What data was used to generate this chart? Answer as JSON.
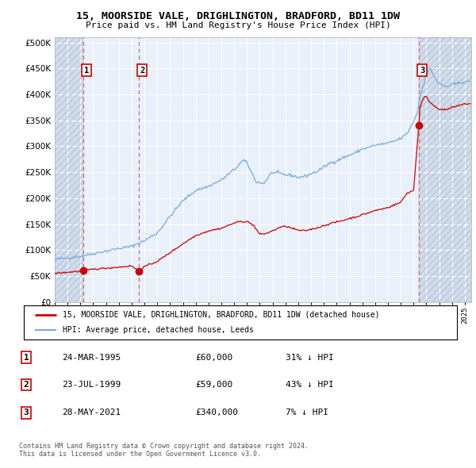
{
  "title": "15, MOORSIDE VALE, DRIGHLINGTON, BRADFORD, BD11 1DW",
  "subtitle": "Price paid vs. HM Land Registry's House Price Index (HPI)",
  "legend_label1": "15, MOORSIDE VALE, DRIGHLINGTON, BRADFORD, BD11 1DW (detached house)",
  "legend_label2": "HPI: Average price, detached house, Leeds",
  "table_entries": [
    {
      "num": "1",
      "date": "24-MAR-1995",
      "price": "£60,000",
      "hpi": "31% ↓ HPI"
    },
    {
      "num": "2",
      "date": "23-JUL-1999",
      "price": "£59,000",
      "hpi": "43% ↓ HPI"
    },
    {
      "num": "3",
      "date": "28-MAY-2021",
      "price": "£340,000",
      "hpi": "7% ↓ HPI"
    }
  ],
  "sale_dates": [
    1995.23,
    1999.56,
    2021.41
  ],
  "sale_prices": [
    60000,
    59000,
    340000
  ],
  "copyright": "Contains HM Land Registry data © Crown copyright and database right 2024.\nThis data is licensed under the Open Government Licence v3.0.",
  "bg_color": "#ffffff",
  "plot_bg": "#e8f0fa",
  "hatch_bg": "#d0dcea",
  "grid_color": "#ffffff",
  "red_line_color": "#cc0000",
  "blue_line_color": "#7aaadd",
  "dashed_line_color": "#dd6666",
  "ylim": [
    0,
    510000
  ],
  "xlim": [
    1993.0,
    2025.5
  ],
  "hpi_anchors": [
    [
      1993.0,
      82000
    ],
    [
      1994.0,
      85000
    ],
    [
      1995.0,
      88000
    ],
    [
      1996.0,
      93000
    ],
    [
      1997.0,
      98000
    ],
    [
      1998.0,
      103000
    ],
    [
      1999.0,
      107000
    ],
    [
      2000.0,
      118000
    ],
    [
      2001.0,
      133000
    ],
    [
      2002.0,
      165000
    ],
    [
      2003.0,
      195000
    ],
    [
      2004.0,
      215000
    ],
    [
      2005.0,
      223000
    ],
    [
      2006.0,
      235000
    ],
    [
      2007.0,
      255000
    ],
    [
      2007.7,
      273000
    ],
    [
      2008.0,
      268000
    ],
    [
      2008.7,
      232000
    ],
    [
      2009.3,
      228000
    ],
    [
      2009.8,
      245000
    ],
    [
      2010.0,
      250000
    ],
    [
      2010.5,
      248000
    ],
    [
      2011.0,
      245000
    ],
    [
      2011.5,
      244000
    ],
    [
      2012.0,
      240000
    ],
    [
      2012.5,
      242000
    ],
    [
      2013.0,
      247000
    ],
    [
      2013.5,
      252000
    ],
    [
      2014.0,
      260000
    ],
    [
      2014.5,
      268000
    ],
    [
      2015.0,
      272000
    ],
    [
      2015.5,
      278000
    ],
    [
      2016.0,
      283000
    ],
    [
      2016.5,
      288000
    ],
    [
      2017.0,
      295000
    ],
    [
      2017.5,
      298000
    ],
    [
      2018.0,
      302000
    ],
    [
      2018.5,
      304000
    ],
    [
      2019.0,
      306000
    ],
    [
      2019.5,
      310000
    ],
    [
      2020.0,
      315000
    ],
    [
      2020.5,
      325000
    ],
    [
      2021.0,
      348000
    ],
    [
      2021.3,
      365000
    ],
    [
      2021.5,
      395000
    ],
    [
      2021.8,
      420000
    ],
    [
      2022.0,
      440000
    ],
    [
      2022.3,
      450000
    ],
    [
      2022.6,
      435000
    ],
    [
      2023.0,
      420000
    ],
    [
      2023.5,
      415000
    ],
    [
      2024.0,
      418000
    ],
    [
      2024.5,
      422000
    ],
    [
      2025.0,
      425000
    ]
  ],
  "red_anchors": [
    [
      1993.0,
      55000
    ],
    [
      1994.0,
      57000
    ],
    [
      1995.23,
      60000
    ],
    [
      1996.0,
      63000
    ],
    [
      1997.0,
      65000
    ],
    [
      1998.0,
      67000
    ],
    [
      1999.0,
      69500
    ],
    [
      1999.56,
      59000
    ],
    [
      2000.0,
      68000
    ],
    [
      2001.0,
      78000
    ],
    [
      2002.0,
      95000
    ],
    [
      2003.0,
      112000
    ],
    [
      2004.0,
      128000
    ],
    [
      2005.0,
      137000
    ],
    [
      2006.0,
      142000
    ],
    [
      2007.0,
      152000
    ],
    [
      2007.5,
      155000
    ],
    [
      2008.0,
      155000
    ],
    [
      2008.5,
      148000
    ],
    [
      2009.0,
      130000
    ],
    [
      2009.5,
      132000
    ],
    [
      2010.0,
      137000
    ],
    [
      2010.5,
      143000
    ],
    [
      2011.0,
      146000
    ],
    [
      2011.5,
      142000
    ],
    [
      2012.0,
      138000
    ],
    [
      2012.5,
      137000
    ],
    [
      2013.0,
      140000
    ],
    [
      2013.5,
      143000
    ],
    [
      2014.0,
      147000
    ],
    [
      2014.5,
      151000
    ],
    [
      2015.0,
      154000
    ],
    [
      2015.5,
      157000
    ],
    [
      2016.0,
      161000
    ],
    [
      2016.5,
      164000
    ],
    [
      2017.0,
      168000
    ],
    [
      2017.5,
      172000
    ],
    [
      2018.0,
      176000
    ],
    [
      2018.5,
      179000
    ],
    [
      2019.0,
      182000
    ],
    [
      2019.3,
      185000
    ],
    [
      2019.6,
      188000
    ],
    [
      2020.0,
      192000
    ],
    [
      2020.5,
      210000
    ],
    [
      2021.0,
      215000
    ],
    [
      2021.41,
      340000
    ],
    [
      2021.5,
      375000
    ],
    [
      2021.8,
      395000
    ],
    [
      2022.0,
      395000
    ],
    [
      2022.3,
      385000
    ],
    [
      2022.6,
      378000
    ],
    [
      2023.0,
      372000
    ],
    [
      2023.5,
      370000
    ],
    [
      2024.0,
      375000
    ],
    [
      2024.5,
      378000
    ],
    [
      2025.0,
      382000
    ]
  ]
}
